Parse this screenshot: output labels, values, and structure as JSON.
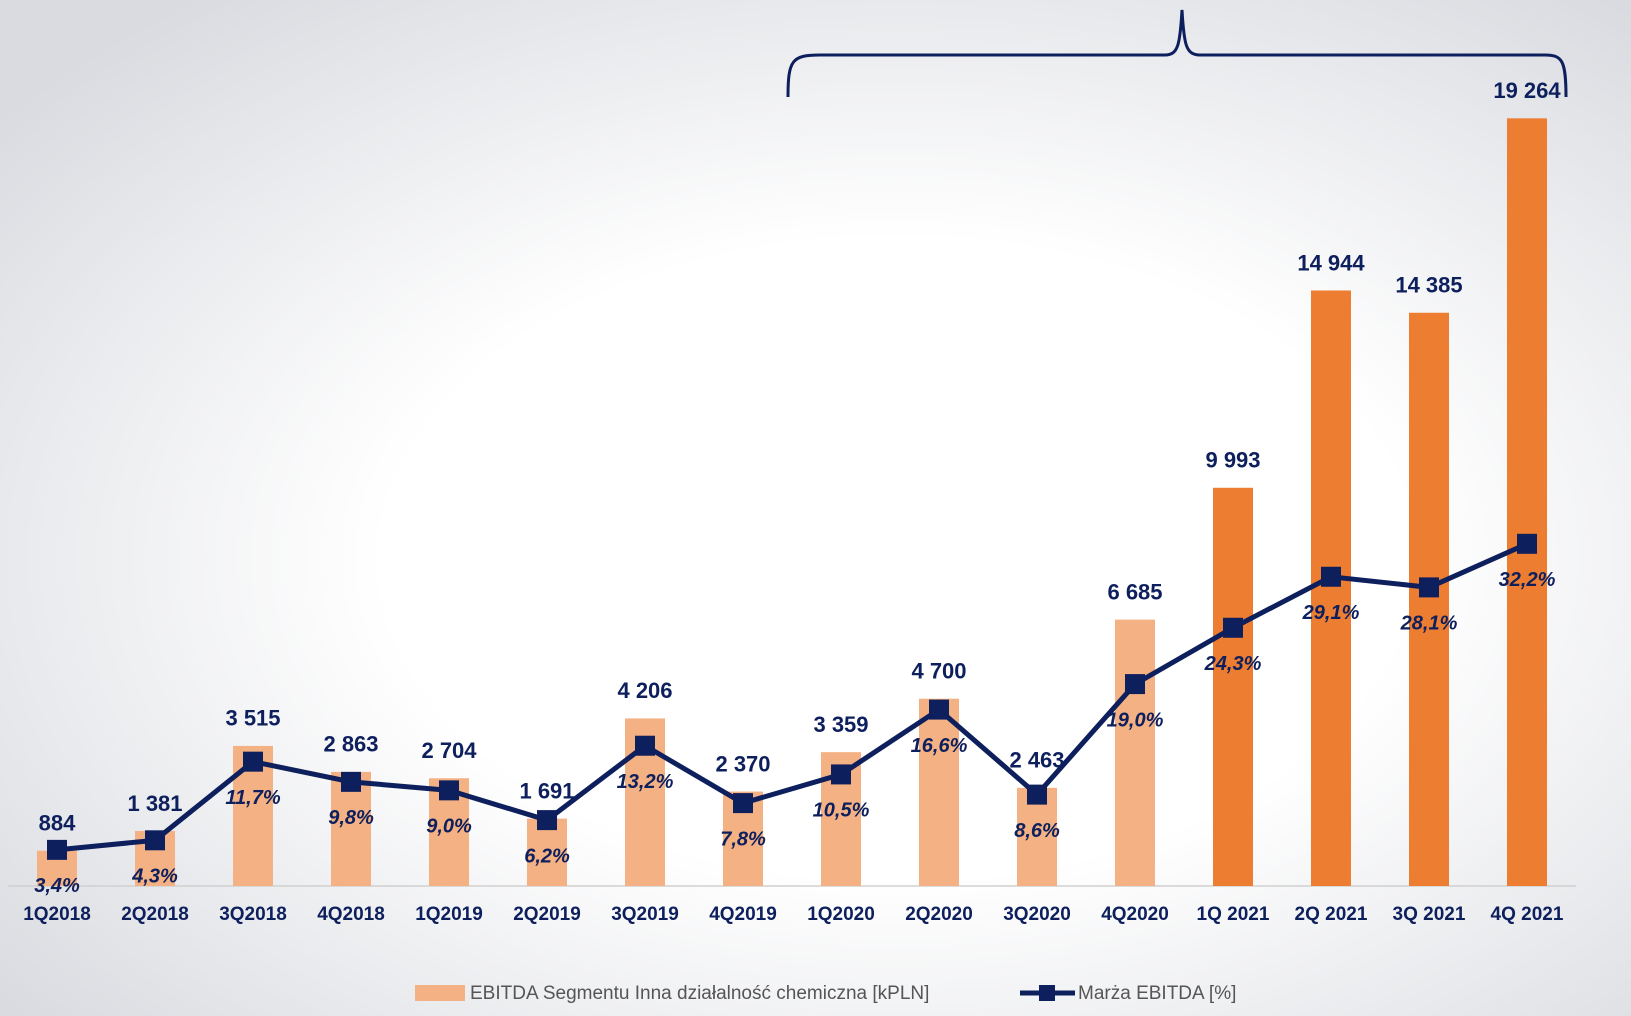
{
  "chart_data": {
    "type": "bar",
    "categories": [
      "1Q2018",
      "2Q2018",
      "3Q2018",
      "4Q2018",
      "1Q2019",
      "2Q2019",
      "3Q2019",
      "4Q2019",
      "1Q2020",
      "2Q2020",
      "3Q2020",
      "4Q2020",
      "1Q 2021",
      "2Q 2021",
      "3Q 2021",
      "4Q 2021"
    ],
    "series": [
      {
        "name": "EBITDA Segmentu Inna działalność chemiczna [kPLN]",
        "type": "bar",
        "color": "#f4b183",
        "colors": [
          "#f4b183",
          "#f4b183",
          "#f4b183",
          "#f4b183",
          "#f4b183",
          "#f4b183",
          "#f4b183",
          "#f4b183",
          "#f4b183",
          "#f4b183",
          "#f4b183",
          "#f4b183",
          "#ed7d31",
          "#ed7d31",
          "#ed7d31",
          "#ed7d31"
        ],
        "values": [
          884,
          1381,
          3515,
          2863,
          2704,
          1691,
          4206,
          2370,
          3359,
          4700,
          2463,
          6685,
          9993,
          14944,
          14385,
          19264
        ],
        "value_labels": [
          "884",
          "1 381",
          "3 515",
          "2 863",
          "2 704",
          "1 691",
          "4 206",
          "2 370",
          "3 359",
          "4 700",
          "2 463",
          "6 685",
          "9 993",
          "14 944",
          "14 385",
          "19 264"
        ]
      },
      {
        "name": "Marża EBITDA [%]",
        "type": "line",
        "axis": "y2",
        "color": "#0d1f5c",
        "values": [
          3.4,
          4.3,
          11.7,
          9.8,
          9.0,
          6.2,
          13.2,
          7.8,
          10.5,
          16.6,
          8.6,
          19.0,
          24.3,
          29.1,
          28.1,
          32.2
        ],
        "value_labels": [
          "3,4%",
          "4,3%",
          "11,7%",
          "9,8%",
          "9,0%",
          "6,2%",
          "13,2%",
          "7,8%",
          "10,5%",
          "16,6%",
          "8,6%",
          "19,0%",
          "24,3%",
          "29,1%",
          "28,1%",
          "32,2%"
        ]
      }
    ],
    "ylim": [
      0,
      20000
    ],
    "y2lim": [
      0,
      75
    ]
  }
}
